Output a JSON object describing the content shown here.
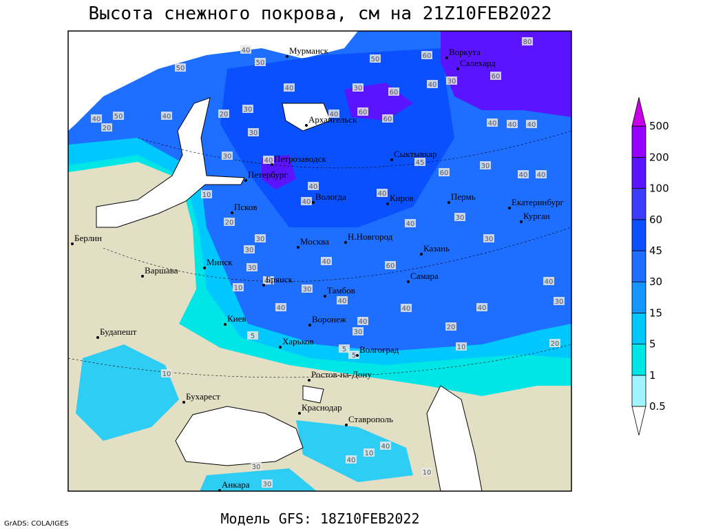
{
  "title": "Высота снежного покрова, см на 21Z10FEB2022",
  "footer": "Модель GFS: 18Z10FEB2022",
  "credit": "GrADS: COLA/IGES",
  "legend": {
    "levels": [
      0.5,
      1,
      5,
      15,
      30,
      45,
      60,
      100,
      200,
      500
    ],
    "colors": [
      "#ffffff",
      "#a0f4ff",
      "#00e6e6",
      "#00c8ff",
      "#1496ff",
      "#1e6eff",
      "#0a50ff",
      "#3c3cff",
      "#5a14ff",
      "#9600ff",
      "#c800e6"
    ]
  },
  "cities": [
    "Мурманск",
    "Воркута",
    "Салехард",
    "Архангельск",
    "Петрозаводск",
    "Сыктывкар",
    "Петербург",
    "Вологда",
    "Киров",
    "Пермь",
    "Екатеринбург",
    "Псков",
    "Курган",
    "Берлин",
    "Н.Новгород",
    "Москва",
    "Казань",
    "Минск",
    "Варшава",
    "Самара",
    "Брянск",
    "Тамбов",
    "Киев",
    "Воронеж",
    "Будапешт",
    "Харьков",
    "Волгоград",
    "Ростов-на-Дону",
    "Бухарест",
    "Краснодар",
    "Ставрополь",
    "Анкара"
  ],
  "contour_labels": [
    40,
    50,
    50,
    60,
    80,
    50,
    40,
    30,
    60,
    40,
    30,
    60,
    50,
    40,
    20,
    40,
    20,
    30,
    40,
    60,
    60,
    40,
    40,
    40,
    30,
    30,
    40,
    45,
    60,
    30,
    40,
    40,
    40,
    40,
    40,
    10,
    20,
    30,
    30,
    30,
    30,
    40,
    40,
    60,
    30,
    10,
    40,
    30,
    40,
    40,
    40,
    40,
    30,
    40,
    20,
    40,
    30,
    5,
    10,
    5,
    5,
    20,
    10,
    10,
    40,
    40,
    10,
    30,
    30
  ]
}
